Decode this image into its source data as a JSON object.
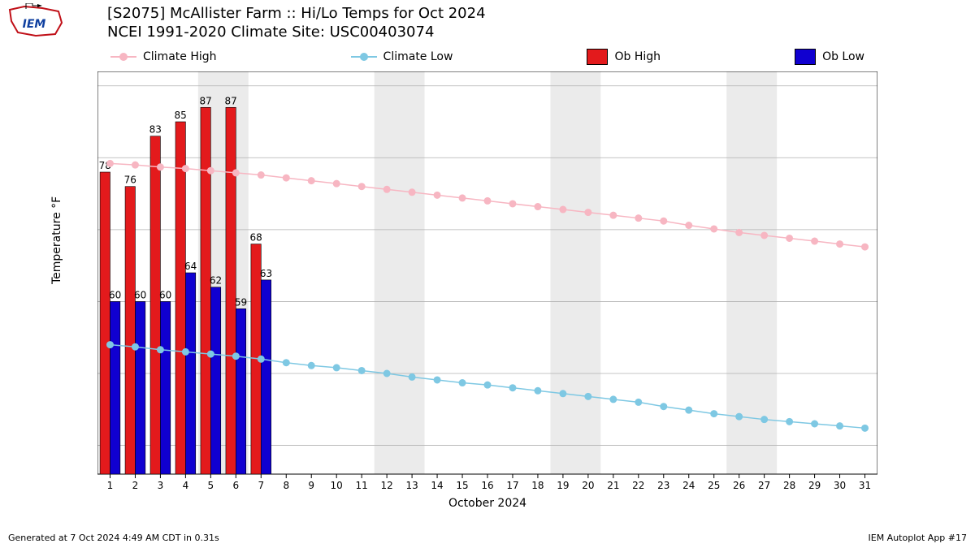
{
  "title": {
    "line1": "[S2075] McAllister Farm :: Hi/Lo Temps for Oct 2024",
    "line2": "NCEI 1991-2020 Climate Site: USC00403074"
  },
  "legend": {
    "climate_high": "Climate High",
    "climate_low": "Climate Low",
    "ob_high": "Ob High",
    "ob_low": "Ob Low"
  },
  "colors": {
    "climate_high": "#f7b6c2",
    "climate_low": "#7ec8e3",
    "ob_high": "#e31a1c",
    "ob_low": "#1000d0",
    "grid": "#b0b0b0",
    "axis": "#000000",
    "weekend_band": "#ebebeb",
    "background": "#ffffff",
    "text": "#000000"
  },
  "chart": {
    "type": "bar_and_line",
    "xlabel": "October 2024",
    "ylabel": "Temperature °F",
    "xlim": [
      0.5,
      31.5
    ],
    "ylim": [
      36,
      92
    ],
    "yticks": [
      40,
      50,
      60,
      70,
      80,
      90
    ],
    "xticks_days": [
      1,
      2,
      3,
      4,
      5,
      6,
      7,
      8,
      9,
      10,
      11,
      12,
      13,
      14,
      15,
      16,
      17,
      18,
      19,
      20,
      21,
      22,
      23,
      24,
      25,
      26,
      27,
      28,
      29,
      30,
      31
    ],
    "weekend_bands": [
      [
        4.5,
        6.5
      ],
      [
        11.5,
        13.5
      ],
      [
        18.5,
        20.5
      ],
      [
        25.5,
        27.5
      ]
    ],
    "climate_high": [
      79.2,
      79.0,
      78.7,
      78.5,
      78.2,
      77.9,
      77.6,
      77.2,
      76.8,
      76.4,
      76.0,
      75.6,
      75.2,
      74.8,
      74.4,
      74.0,
      73.6,
      73.2,
      72.8,
      72.4,
      72.0,
      71.6,
      71.2,
      70.6,
      70.1,
      69.6,
      69.2,
      68.8,
      68.4,
      68.0,
      67.6
    ],
    "climate_low": [
      54.0,
      53.7,
      53.3,
      53.0,
      52.7,
      52.4,
      52.0,
      51.5,
      51.1,
      50.8,
      50.4,
      50.0,
      49.5,
      49.1,
      48.7,
      48.4,
      48.0,
      47.6,
      47.2,
      46.8,
      46.4,
      46.0,
      45.4,
      44.9,
      44.4,
      44.0,
      43.6,
      43.3,
      43.0,
      42.7,
      42.4
    ],
    "ob_high": [
      78,
      76,
      83,
      85,
      87,
      87,
      68
    ],
    "ob_low": [
      60,
      60,
      60,
      64,
      62,
      59,
      63
    ],
    "bar_total_width": 0.8,
    "marker_radius": 4,
    "line_width": 1.5,
    "title_fontsize": 18,
    "label_fontsize": 14,
    "tick_fontsize": 12,
    "barlabel_fontsize": 12
  },
  "footer": {
    "left": "Generated at 7 Oct 2024 4:49 AM CDT in 0.31s",
    "right": "IEM Autoplot App #17"
  },
  "logo": {
    "border_color": "#c01018",
    "text": "IEM"
  }
}
